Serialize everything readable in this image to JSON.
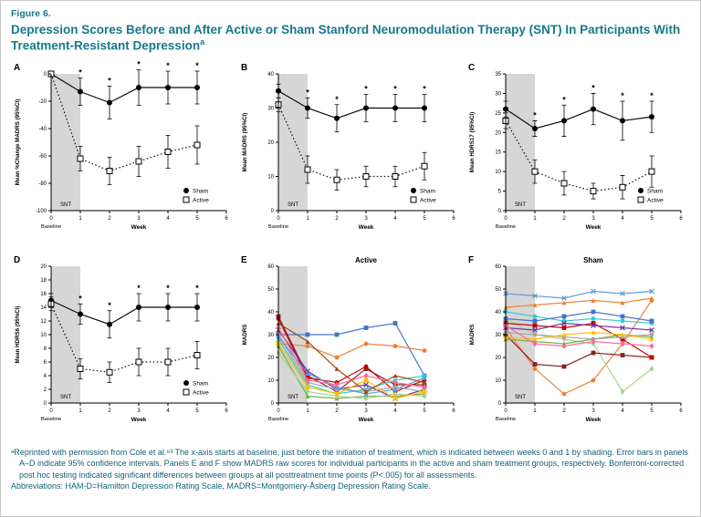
{
  "figure": {
    "label": "Figure 6.",
    "title": "Depression Scores Before and After Active or Sham Stanford Neuromodulation Therapy (SNT) In Participants With Treatment-Resistant Depression",
    "title_superscript": "a"
  },
  "colors": {
    "accent": "#16798C",
    "footnote": "#155E73",
    "shading": "#d6d6d6",
    "axis": "#000000"
  },
  "footnotes": [
    "ᵃReprinted with permission from Cole et al.⁸³ The x-axis starts at baseline, just before the initiation of treatment, which is indicated between weeks 0 and 1 by shading. Error bars in panels A–D indicate 95% confidence intervals. Panels E and F show MADRS raw scores for individual participants in the active and sham treatment groups, respectively. Bonferroni-corrected post hoc testing indicated significant differences between groups at all posttreatment time points (P<.005) for all assessments.",
    "Abbreviations: HAM-D=Hamilton Depression Rating Scale, MADRS=Montgomery-Åsberg Depression Rating Scale."
  ],
  "chart_data": [
    {
      "panel": "A",
      "kind": "mean",
      "type": "line",
      "ylabel": "Mean %Change MADRS (95%CI)",
      "xlabel": "Week",
      "baseline_label": "Baseline",
      "snt_label": "SNT",
      "ylim": [
        -100,
        0
      ],
      "y_ticks": [
        0,
        -20,
        -40,
        -60,
        -80,
        -100
      ],
      "x_ticks": [
        0,
        1,
        2,
        3,
        4,
        5,
        6
      ],
      "x": [
        0,
        1,
        2,
        3,
        4,
        5
      ],
      "series": [
        {
          "name": "Sham",
          "marker": "filled-circle",
          "line": "solid",
          "color": "#000000",
          "values": [
            0,
            -13,
            -21,
            -10,
            -10,
            -10
          ],
          "ci": [
            0,
            10,
            12,
            13,
            12,
            12
          ]
        },
        {
          "name": "Active",
          "marker": "open-square",
          "line": "dotted",
          "color": "#000000",
          "values": [
            0,
            -62,
            -71,
            -64,
            -57,
            -52
          ],
          "ci": [
            0,
            9,
            10,
            11,
            12,
            14
          ]
        }
      ],
      "asterisks_x": [
        1,
        2,
        3,
        4,
        5
      ],
      "legend": true
    },
    {
      "panel": "B",
      "kind": "mean",
      "type": "line",
      "ylabel": "Mean MADRS (95%CI)",
      "xlabel": "Week",
      "baseline_label": "Baseline",
      "snt_label": "SNT",
      "ylim": [
        0,
        40
      ],
      "y_ticks": [
        0,
        10,
        20,
        30,
        40
      ],
      "x_ticks": [
        0,
        1,
        2,
        3,
        4,
        5,
        6
      ],
      "x": [
        0,
        1,
        2,
        3,
        4,
        5
      ],
      "series": [
        {
          "name": "Sham",
          "marker": "filled-circle",
          "line": "solid",
          "color": "#000000",
          "values": [
            35,
            30,
            27,
            30,
            30,
            30
          ],
          "ci": [
            2,
            3,
            4,
            4,
            4,
            4
          ]
        },
        {
          "name": "Active",
          "marker": "open-square",
          "line": "dotted",
          "color": "#000000",
          "values": [
            31,
            12,
            9,
            10,
            10,
            13
          ],
          "ci": [
            2,
            4,
            3,
            3,
            3,
            4
          ]
        }
      ],
      "asterisks_x": [
        1,
        2,
        3,
        4,
        5
      ],
      "legend": true
    },
    {
      "panel": "C",
      "kind": "mean",
      "type": "line",
      "ylabel": "Mean HDRS17 (95%CI)",
      "xlabel": "Week",
      "baseline_label": "Baseline",
      "snt_label": "SNT",
      "ylim": [
        0,
        35
      ],
      "y_ticks": [
        0,
        5,
        10,
        15,
        20,
        25,
        30,
        35
      ],
      "x_ticks": [
        0,
        1,
        2,
        3,
        4,
        5,
        6
      ],
      "x": [
        0,
        1,
        2,
        3,
        4,
        5
      ],
      "series": [
        {
          "name": "Sham",
          "marker": "filled-circle",
          "line": "solid",
          "color": "#000000",
          "values": [
            26,
            21,
            23,
            26,
            23,
            24
          ],
          "ci": [
            2,
            2,
            4,
            4,
            5,
            4
          ]
        },
        {
          "name": "Active",
          "marker": "open-square",
          "line": "dotted",
          "color": "#000000",
          "values": [
            23,
            10,
            7,
            5,
            6,
            10
          ],
          "ci": [
            2,
            3,
            3,
            2,
            3,
            4
          ]
        }
      ],
      "asterisks_x": [
        1,
        2,
        3,
        4,
        5
      ],
      "legend": true
    },
    {
      "panel": "D",
      "kind": "mean",
      "type": "line",
      "ylabel": "Mean HDRS6 (95%CI)",
      "xlabel": "Week",
      "baseline_label": "Baseline",
      "snt_label": "SNT",
      "ylim": [
        0,
        20
      ],
      "y_ticks": [
        0,
        2,
        4,
        6,
        8,
        10,
        12,
        14,
        16,
        18,
        20
      ],
      "x_ticks": [
        0,
        1,
        2,
        3,
        4,
        5,
        6
      ],
      "x": [
        0,
        1,
        2,
        3,
        4,
        5
      ],
      "series": [
        {
          "name": "Sham",
          "marker": "filled-circle",
          "line": "solid",
          "color": "#000000",
          "values": [
            15,
            13,
            11.5,
            14,
            14,
            14
          ],
          "ci": [
            1,
            1.5,
            2,
            2,
            2,
            2
          ]
        },
        {
          "name": "Active",
          "marker": "open-square",
          "line": "dotted",
          "color": "#000000",
          "values": [
            14.5,
            5,
            4.5,
            6,
            6,
            7
          ],
          "ci": [
            1,
            1.5,
            1.5,
            2,
            2,
            2
          ]
        }
      ],
      "asterisks_x": [
        1,
        2,
        3,
        4,
        5
      ],
      "legend": true
    },
    {
      "panel": "E",
      "kind": "individual",
      "type": "line",
      "title": "Active",
      "ylabel": "MADRS",
      "xlabel": "Week",
      "baseline_label": "Baseline",
      "snt_label": "SNT",
      "ylim": [
        0,
        60
      ],
      "y_ticks": [
        0,
        10,
        20,
        30,
        40,
        50,
        60
      ],
      "x_ticks": [
        0,
        1,
        2,
        3,
        4,
        5,
        6
      ],
      "x": [
        0,
        1,
        2,
        3,
        4,
        5
      ],
      "series": [
        {
          "marker": "square",
          "line": "solid",
          "color": "#4472C4",
          "values": [
            30,
            30,
            30,
            33,
            35,
            12
          ]
        },
        {
          "marker": "circle",
          "line": "solid",
          "color": "#ED7D31",
          "values": [
            26,
            25,
            20,
            26,
            25,
            23
          ]
        },
        {
          "marker": "square",
          "line": "solid",
          "color": "#8B2020",
          "values": [
            38,
            12,
            5,
            15,
            8,
            8
          ]
        },
        {
          "marker": "circle",
          "line": "solid",
          "color": "#C00000",
          "values": [
            37,
            11,
            9,
            16,
            5,
            10
          ]
        },
        {
          "marker": "x",
          "line": "solid",
          "color": "#7030A0",
          "values": [
            32,
            14,
            6,
            8,
            2,
            6
          ]
        },
        {
          "marker": "x",
          "line": "solid",
          "color": "#33CCCC",
          "values": [
            28,
            8,
            4,
            6,
            10,
            12
          ]
        },
        {
          "marker": "triangle",
          "line": "solid",
          "color": "#70AD47",
          "values": [
            25,
            3,
            2,
            3,
            3,
            4
          ]
        },
        {
          "marker": "diamond",
          "line": "solid",
          "color": "#A9D18E",
          "values": [
            22,
            5,
            3,
            2,
            4,
            3
          ]
        },
        {
          "marker": "circle",
          "line": "solid",
          "color": "#A5A5A5",
          "values": [
            30,
            9,
            6,
            5,
            7,
            5
          ]
        },
        {
          "marker": "triangle",
          "line": "solid",
          "color": "#5B9BD5",
          "values": [
            29,
            13,
            7,
            4,
            6,
            11
          ]
        },
        {
          "marker": "square",
          "line": "solid",
          "color": "#FFC000",
          "values": [
            26,
            7,
            4,
            10,
            2,
            5
          ]
        },
        {
          "marker": "diamond",
          "line": "solid",
          "color": "#FF6699",
          "values": [
            33,
            10,
            8,
            12,
            9,
            7
          ]
        },
        {
          "marker": "triangle",
          "line": "solid",
          "color": "#9E480E",
          "values": [
            35,
            27,
            15,
            5,
            12,
            9
          ]
        }
      ]
    },
    {
      "panel": "F",
      "kind": "individual",
      "type": "line",
      "title": "Sham",
      "ylabel": "MADRS",
      "xlabel": "Week",
      "baseline_label": "Baseline",
      "snt_label": "SNT",
      "ylim": [
        0,
        60
      ],
      "y_ticks": [
        0,
        10,
        20,
        30,
        40,
        50,
        60
      ],
      "x_ticks": [
        0,
        1,
        2,
        3,
        4,
        5,
        6
      ],
      "x": [
        0,
        1,
        2,
        3,
        4,
        5
      ],
      "series": [
        {
          "marker": "x",
          "line": "solid",
          "color": "#5B9BD5",
          "values": [
            48,
            47,
            46,
            49,
            48,
            49
          ]
        },
        {
          "marker": "triangle",
          "line": "solid",
          "color": "#ED7D31",
          "values": [
            42,
            43,
            44,
            45,
            44,
            46
          ]
        },
        {
          "marker": "circle",
          "line": "solid",
          "color": "#33CCCC",
          "values": [
            40,
            38,
            36,
            37,
            36,
            35
          ]
        },
        {
          "marker": "circle",
          "line": "solid",
          "color": "#E8833A",
          "values": [
            33,
            15,
            4,
            10,
            26,
            45
          ]
        },
        {
          "marker": "diamond",
          "line": "solid",
          "color": "#A9D18E",
          "values": [
            37,
            30,
            28,
            26,
            5,
            15
          ]
        },
        {
          "marker": "square",
          "line": "solid",
          "color": "#8B2020",
          "values": [
            30,
            17,
            16,
            22,
            21,
            20
          ]
        },
        {
          "marker": "square",
          "line": "solid",
          "color": "#C00000",
          "values": [
            35,
            34,
            33,
            35,
            28,
            20
          ]
        },
        {
          "marker": "x",
          "line": "solid",
          "color": "#7030A0",
          "values": [
            33,
            32,
            35,
            34,
            33,
            32
          ]
        },
        {
          "marker": "square",
          "line": "solid",
          "color": "#4472C4",
          "values": [
            37,
            36,
            38,
            40,
            38,
            36
          ]
        },
        {
          "marker": "triangle",
          "line": "solid",
          "color": "#70AD47",
          "values": [
            28,
            27,
            26,
            28,
            30,
            29
          ]
        },
        {
          "marker": "circle",
          "line": "solid",
          "color": "#A5A5A5",
          "values": [
            31,
            30,
            29,
            28,
            29,
            30
          ]
        },
        {
          "marker": "triangle",
          "line": "solid",
          "color": "#FFC000",
          "values": [
            29,
            28,
            30,
            31,
            30,
            28
          ]
        },
        {
          "marker": "diamond",
          "line": "solid",
          "color": "#FF6699",
          "values": [
            34,
            26,
            25,
            27,
            26,
            25
          ]
        }
      ]
    }
  ]
}
